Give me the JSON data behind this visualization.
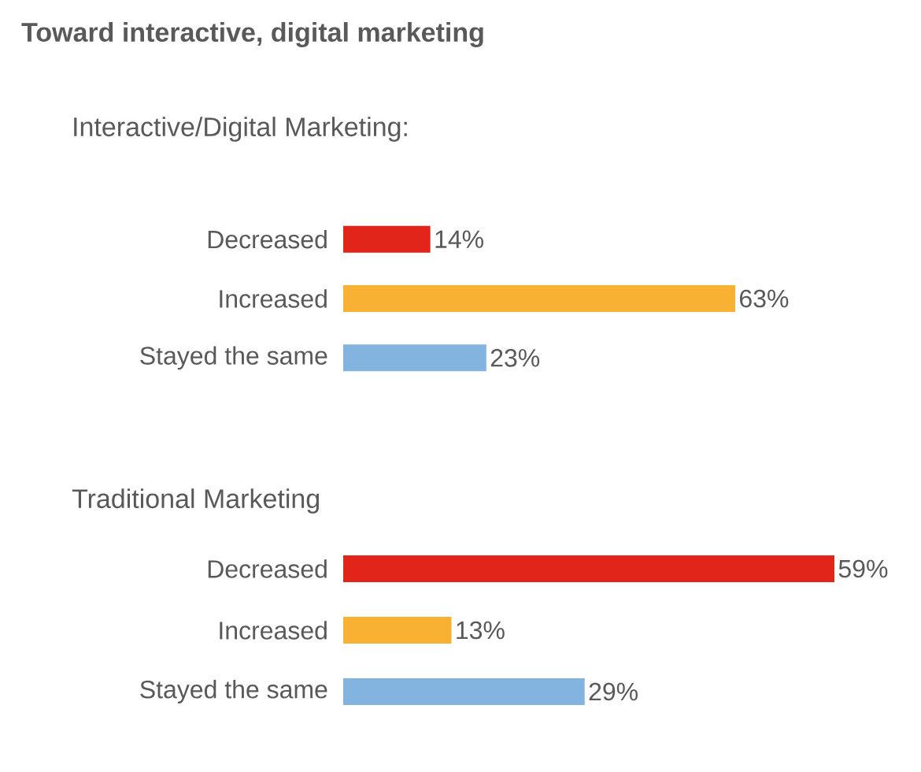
{
  "chart_data": [
    {
      "type": "bar",
      "orientation": "horizontal",
      "title": "Toward interactive, digital marketing",
      "subtitle": "Interactive/Digital Marketing:",
      "categories": [
        "Decreased",
        "Increased",
        "Stayed the same"
      ],
      "values": [
        14,
        63,
        23
      ],
      "colors": [
        "#e1251b",
        "#f9b133",
        "#83b4df"
      ],
      "value_labels": [
        "14%",
        "63%",
        "23%"
      ]
    },
    {
      "type": "bar",
      "orientation": "horizontal",
      "title": "Traditional Marketing",
      "categories": [
        "Decreased",
        "Increased",
        "Stayed the same"
      ],
      "values": [
        59,
        13,
        29
      ],
      "colors": [
        "#e1251b",
        "#f9b133",
        "#83b4df"
      ],
      "value_labels": [
        "59%",
        "13%",
        "29%"
      ]
    }
  ]
}
